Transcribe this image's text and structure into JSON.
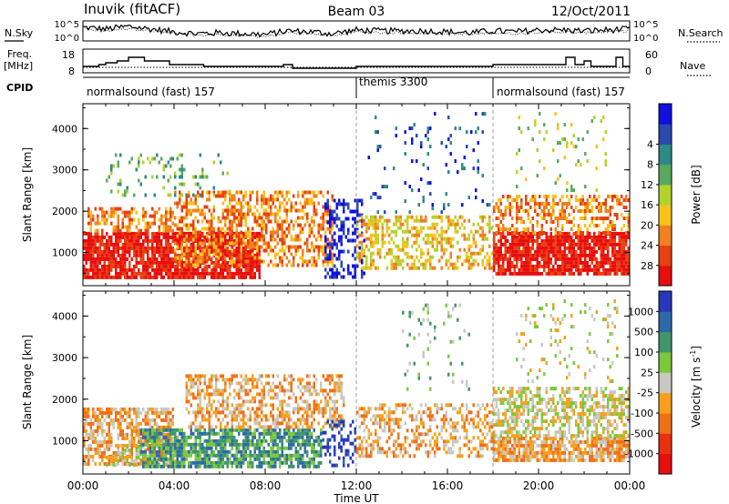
{
  "header": {
    "station": "Inuvik (fitACF)",
    "beam": "Beam 03",
    "date": "12/Oct/2011"
  },
  "noise_panel": {
    "left_label": "N.Sky",
    "left_ticks": [
      "10^5",
      "10^0"
    ],
    "right_ticks": [
      "10^5",
      "10^0"
    ],
    "right_label": "N.Search"
  },
  "freq_panel": {
    "left_label_line1": "Freq.",
    "left_label_line2": "[MHz]",
    "left_ticks": [
      "18",
      "8"
    ],
    "right_ticks": [
      "60",
      "0"
    ],
    "right_label": "Nave"
  },
  "cpid": {
    "label": "CPID",
    "segments": [
      {
        "name": "normalsound (fast) 157",
        "start_hour": 0
      },
      {
        "name": "themis 3300",
        "start_hour": 12
      },
      {
        "name": "normalsound (fast) 157",
        "start_hour": 18
      }
    ]
  },
  "x_axis": {
    "label": "Time UT",
    "ticks": [
      "00:00",
      "04:00",
      "08:00",
      "12:00",
      "16:00",
      "20:00",
      "00:00"
    ]
  },
  "chart_data": [
    {
      "type": "heatmap",
      "title": "",
      "xlabel": "Time UT",
      "ylabel": "Slant Range [km]",
      "xlim": [
        0,
        24
      ],
      "ylim": [
        200,
        4600
      ],
      "y_ticks": [
        1000,
        2000,
        3000,
        4000
      ],
      "colorbar": {
        "label": "Power [dB]",
        "ticks": [
          "4",
          "8",
          "12",
          "16",
          "20",
          "24",
          "28"
        ],
        "colors": [
          "#1010e0",
          "#2a4ab0",
          "#2f8a86",
          "#5aa860",
          "#b4d22c",
          "#f7c21c",
          "#f08020",
          "#e84010",
          "#e80e0e"
        ]
      },
      "scatter_regions": [
        {
          "t0": 0.0,
          "t1": 7.8,
          "r0": 400,
          "r1": 1500,
          "level": 8,
          "density": 0.85
        },
        {
          "t0": 0.2,
          "t1": 4.0,
          "r0": 1500,
          "r1": 2100,
          "level": 6,
          "density": 0.55
        },
        {
          "t0": 4.0,
          "t1": 11.0,
          "r0": 700,
          "r1": 2500,
          "level": 6,
          "density": 0.5
        },
        {
          "t0": 1.0,
          "t1": 6.5,
          "r0": 2400,
          "r1": 3400,
          "level": 3,
          "density": 0.15
        },
        {
          "t0": 10.6,
          "t1": 12.3,
          "r0": 400,
          "r1": 2300,
          "level": 0,
          "density": 0.35
        },
        {
          "t0": 12.0,
          "t1": 18.0,
          "r0": 600,
          "r1": 1900,
          "level": 5,
          "density": 0.45
        },
        {
          "t0": 12.5,
          "t1": 18.0,
          "r0": 2000,
          "r1": 4400,
          "level": 1,
          "density": 0.05
        },
        {
          "t0": 18.0,
          "t1": 24.0,
          "r0": 500,
          "r1": 1500,
          "level": 8,
          "density": 0.85
        },
        {
          "t0": 18.0,
          "t1": 24.0,
          "r0": 1500,
          "r1": 2400,
          "level": 6,
          "density": 0.45
        },
        {
          "t0": 19.0,
          "t1": 23.0,
          "r0": 2500,
          "r1": 4400,
          "level": 4,
          "density": 0.08
        }
      ]
    },
    {
      "type": "heatmap",
      "title": "",
      "xlabel": "Time UT",
      "ylabel": "Slant Range [km]",
      "xlim": [
        0,
        24
      ],
      "ylim": [
        200,
        4600
      ],
      "y_ticks": [
        1000,
        2000,
        3000,
        4000
      ],
      "colorbar": {
        "label": "Velocity [m s^-1]",
        "ticks": [
          "1000",
          "500",
          "100",
          "25",
          "-25",
          "-100",
          "-500",
          "-1000"
        ],
        "colors": [
          "#2838b8",
          "#2e6aa8",
          "#40966a",
          "#7cc83c",
          "#c8c8c0",
          "#f7a01c",
          "#f07018",
          "#e83010",
          "#e80e0e"
        ]
      },
      "scatter_regions": [
        {
          "t0": 0.0,
          "t1": 4.0,
          "r0": 400,
          "r1": 1800,
          "level": 5,
          "density": 0.65
        },
        {
          "t0": 1.0,
          "t1": 4.5,
          "r0": 400,
          "r1": 900,
          "level": 4,
          "density": 0.4
        },
        {
          "t0": 2.5,
          "t1": 10.5,
          "r0": 400,
          "r1": 1300,
          "level": 2,
          "density": 0.75
        },
        {
          "t0": 4.5,
          "t1": 11.5,
          "r0": 1300,
          "r1": 2600,
          "level": 5,
          "density": 0.5
        },
        {
          "t0": 10.5,
          "t1": 12.0,
          "r0": 400,
          "r1": 1500,
          "level": 0,
          "density": 0.35
        },
        {
          "t0": 12.0,
          "t1": 18.0,
          "r0": 600,
          "r1": 1900,
          "level": 5,
          "density": 0.45
        },
        {
          "t0": 14.0,
          "t1": 17.0,
          "r0": 2200,
          "r1": 4300,
          "level": 3,
          "density": 0.06
        },
        {
          "t0": 18.0,
          "t1": 24.0,
          "r0": 500,
          "r1": 1100,
          "level": 5,
          "density": 0.8
        },
        {
          "t0": 18.0,
          "t1": 24.0,
          "r0": 1100,
          "r1": 2300,
          "level": 4,
          "density": 0.55
        },
        {
          "t0": 19.0,
          "t1": 23.5,
          "r0": 2400,
          "r1": 4400,
          "level": 4,
          "density": 0.1
        }
      ]
    },
    {
      "type": "line",
      "title": "",
      "xlim": [
        0,
        24
      ],
      "series": [
        {
          "values": [
            0.7,
            0.6,
            0.75,
            0.6,
            0.45,
            0.35,
            0.4,
            0.35,
            0.3,
            0.5,
            0.45,
            0.35,
            0.55,
            0.5,
            0.5,
            0.5,
            0.45,
            0.4,
            0.5,
            0.45,
            0.55,
            0.55,
            0.5,
            0.55,
            0.6
          ]
        }
      ]
    },
    {
      "type": "line",
      "title": "",
      "xlim": [
        0,
        24
      ],
      "ylim": [
        8,
        18
      ],
      "series": [
        {
          "step_points": [
            [
              0,
              11
            ],
            [
              0.7,
              11
            ],
            [
              0.7,
              12
            ],
            [
              1.0,
              12
            ],
            [
              1.0,
              13
            ],
            [
              1.5,
              13
            ],
            [
              1.5,
              14
            ],
            [
              2.0,
              14
            ],
            [
              2.0,
              16
            ],
            [
              2.7,
              16
            ],
            [
              2.7,
              14
            ],
            [
              3.8,
              14
            ],
            [
              3.8,
              12
            ],
            [
              5.3,
              12
            ],
            [
              5.3,
              11
            ],
            [
              8.8,
              11
            ],
            [
              8.8,
              12
            ],
            [
              9.2,
              12
            ],
            [
              9.2,
              10
            ],
            [
              12.0,
              10
            ],
            [
              12.0,
              11
            ],
            [
              18.0,
              11
            ],
            [
              18.0,
              12
            ],
            [
              21.2,
              12
            ],
            [
              21.2,
              16
            ],
            [
              21.6,
              16
            ],
            [
              21.6,
              12
            ],
            [
              22.0,
              12
            ],
            [
              22.0,
              14
            ],
            [
              22.3,
              14
            ],
            [
              22.3,
              11
            ],
            [
              23.4,
              11
            ],
            [
              23.4,
              16
            ],
            [
              23.7,
              16
            ],
            [
              23.7,
              11
            ],
            [
              24,
              11
            ]
          ]
        },
        {
          "dotted_value": 10.5
        }
      ]
    }
  ]
}
